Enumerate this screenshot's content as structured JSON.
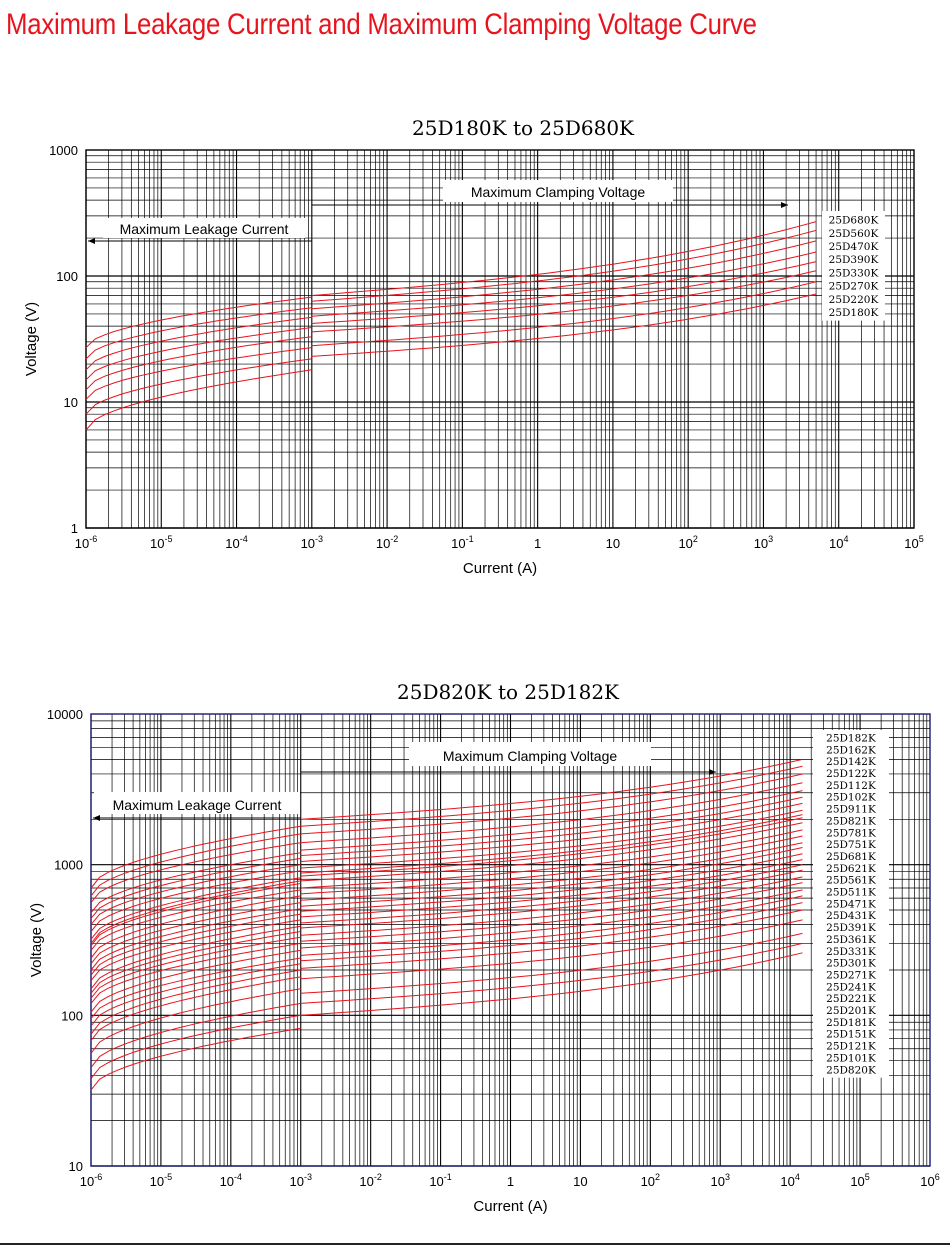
{
  "page": {
    "title": "Maximum Leakage Current and Maximum Clamping Voltage Curve"
  },
  "colors": {
    "title": "#e8141d",
    "curves": "#e8141d",
    "grid": "#000000",
    "frame_chart2": "#1a1a6e"
  },
  "chart_data": [
    {
      "type": "line",
      "title": "25D180K to 25D680K",
      "xlabel": "Current (A)",
      "ylabel": "Voltage (V)",
      "x_scale": "log",
      "y_scale": "log",
      "xlim": [
        1e-06,
        100000.0
      ],
      "ylim": [
        1,
        1000
      ],
      "grid": true,
      "x_tick_labels": [
        {
          "base": "10",
          "exp": "-6"
        },
        {
          "base": "10",
          "exp": "-5"
        },
        {
          "base": "10",
          "exp": "-4"
        },
        {
          "base": "10",
          "exp": "-3"
        },
        {
          "base": "10",
          "exp": "-2"
        },
        {
          "base": "10",
          "exp": "-1"
        },
        {
          "base": "1",
          "exp": ""
        },
        {
          "base": "10",
          "exp": ""
        },
        {
          "base": "10",
          "exp": "2"
        },
        {
          "base": "10",
          "exp": "3"
        },
        {
          "base": "10",
          "exp": "4"
        },
        {
          "base": "10",
          "exp": "5"
        }
      ],
      "y_tick_labels": [
        "1000",
        "100",
        "10",
        "1"
      ],
      "annotations": {
        "leakage": "Maximum Leakage Current",
        "clamping": "Maximum Clamping Voltage"
      },
      "leakage_range": [
        1e-06,
        0.001
      ],
      "clamping_range": [
        0.001,
        5000
      ],
      "legend_position": "right",
      "series": [
        {
          "name": "25D680K",
          "leakage": [
            27,
            68
          ],
          "clamping": [
            70,
            270
          ]
        },
        {
          "name": "25D560K",
          "leakage": [
            22,
            56
          ],
          "clamping": [
            63,
            230
          ]
        },
        {
          "name": "25D470K",
          "leakage": [
            18,
            47
          ],
          "clamping": [
            55,
            190
          ]
        },
        {
          "name": "25D390K",
          "leakage": [
            15,
            39
          ],
          "clamping": [
            48,
            155
          ]
        },
        {
          "name": "25D330K",
          "leakage": [
            12.5,
            33
          ],
          "clamping": [
            42,
            130
          ]
        },
        {
          "name": "25D270K",
          "leakage": [
            10.5,
            27
          ],
          "clamping": [
            36,
            110
          ]
        },
        {
          "name": "25D220K",
          "leakage": [
            8,
            22
          ],
          "clamping": [
            28,
            90
          ]
        },
        {
          "name": "25D180K",
          "leakage": [
            6,
            18
          ],
          "clamping": [
            23,
            72
          ]
        }
      ]
    },
    {
      "type": "line",
      "title": "25D820K to 25D182K",
      "xlabel": "Current (A)",
      "ylabel": "Voltage (V)",
      "x_scale": "log",
      "y_scale": "log",
      "xlim": [
        1e-06,
        1000000.0
      ],
      "ylim": [
        10,
        10000
      ],
      "grid": true,
      "x_tick_labels": [
        {
          "base": "10",
          "exp": "-6"
        },
        {
          "base": "10",
          "exp": "-5"
        },
        {
          "base": "10",
          "exp": "-4"
        },
        {
          "base": "10",
          "exp": "-3"
        },
        {
          "base": "10",
          "exp": "-2"
        },
        {
          "base": "10",
          "exp": "-1"
        },
        {
          "base": "1",
          "exp": ""
        },
        {
          "base": "10",
          "exp": ""
        },
        {
          "base": "10",
          "exp": "2"
        },
        {
          "base": "10",
          "exp": "3"
        },
        {
          "base": "10",
          "exp": "4"
        },
        {
          "base": "10",
          "exp": "5"
        },
        {
          "base": "10",
          "exp": "6"
        }
      ],
      "y_tick_labels": [
        "10000",
        "1000",
        "100",
        "10"
      ],
      "annotations": {
        "leakage": "Maximum Leakage Current",
        "clamping": "Maximum Clamping Voltage"
      },
      "leakage_range": [
        1e-06,
        0.001
      ],
      "clamping_range": [
        0.001,
        15000
      ],
      "legend_position": "right",
      "series": [
        {
          "name": "25D182K",
          "leakage": [
            700,
            1800
          ],
          "clamping": [
            2000,
            5000
          ]
        },
        {
          "name": "25D162K",
          "leakage": [
            620,
            1600
          ],
          "clamping": [
            1800,
            4500
          ]
        },
        {
          "name": "25D142K",
          "leakage": [
            560,
            1400
          ],
          "clamping": [
            1600,
            4000
          ]
        },
        {
          "name": "25D122K",
          "leakage": [
            480,
            1200
          ],
          "clamping": [
            1400,
            3500
          ]
        },
        {
          "name": "25D112K",
          "leakage": [
            440,
            1100
          ],
          "clamping": [
            1250,
            3100
          ]
        },
        {
          "name": "25D102K",
          "leakage": [
            400,
            1000
          ],
          "clamping": [
            1150,
            2800
          ]
        },
        {
          "name": "25D911K",
          "leakage": [
            360,
            910
          ],
          "clamping": [
            1050,
            2550
          ]
        },
        {
          "name": "25D821K",
          "leakage": [
            320,
            820
          ],
          "clamping": [
            950,
            2300
          ]
        },
        {
          "name": "25D781K",
          "leakage": [
            300,
            780
          ],
          "clamping": [
            880,
            2150
          ]
        },
        {
          "name": "25D751K",
          "leakage": [
            290,
            750
          ],
          "clamping": [
            840,
            2050
          ]
        },
        {
          "name": "25D681K",
          "leakage": [
            270,
            680
          ],
          "clamping": [
            780,
            1900
          ]
        },
        {
          "name": "25D621K",
          "leakage": [
            240,
            620
          ],
          "clamping": [
            700,
            1700
          ]
        },
        {
          "name": "25D561K",
          "leakage": [
            220,
            560
          ],
          "clamping": [
            640,
            1550
          ]
        },
        {
          "name": "25D511K",
          "leakage": [
            200,
            510
          ],
          "clamping": [
            580,
            1400
          ]
        },
        {
          "name": "25D471K",
          "leakage": [
            185,
            470
          ],
          "clamping": [
            530,
            1300
          ]
        },
        {
          "name": "25D431K",
          "leakage": [
            170,
            430
          ],
          "clamping": [
            490,
            1180
          ]
        },
        {
          "name": "25D391K",
          "leakage": [
            150,
            390
          ],
          "clamping": [
            450,
            1080
          ]
        },
        {
          "name": "25D361K",
          "leakage": [
            140,
            360
          ],
          "clamping": [
            410,
            1000
          ]
        },
        {
          "name": "25D331K",
          "leakage": [
            130,
            330
          ],
          "clamping": [
            380,
            920
          ]
        },
        {
          "name": "25D301K",
          "leakage": [
            120,
            300
          ],
          "clamping": [
            340,
            830
          ]
        },
        {
          "name": "25D271K",
          "leakage": [
            105,
            270
          ],
          "clamping": [
            310,
            760
          ]
        },
        {
          "name": "25D241K",
          "leakage": [
            95,
            240
          ],
          "clamping": [
            280,
            680
          ]
        },
        {
          "name": "25D221K",
          "leakage": [
            85,
            220
          ],
          "clamping": [
            250,
            620
          ]
        },
        {
          "name": "25D201K",
          "leakage": [
            75,
            200
          ],
          "clamping": [
            230,
            560
          ]
        },
        {
          "name": "25D181K",
          "leakage": [
            68,
            180
          ],
          "clamping": [
            205,
            500
          ]
        },
        {
          "name": "25D151K",
          "leakage": [
            56,
            150
          ],
          "clamping": [
            175,
            430
          ]
        },
        {
          "name": "25D121K",
          "leakage": [
            45,
            120
          ],
          "clamping": [
            140,
            350
          ]
        },
        {
          "name": "25D101K",
          "leakage": [
            38,
            100
          ],
          "clamping": [
            120,
            300
          ]
        },
        {
          "name": "25D820K",
          "leakage": [
            32,
            82
          ],
          "clamping": [
            100,
            260
          ]
        }
      ]
    }
  ]
}
